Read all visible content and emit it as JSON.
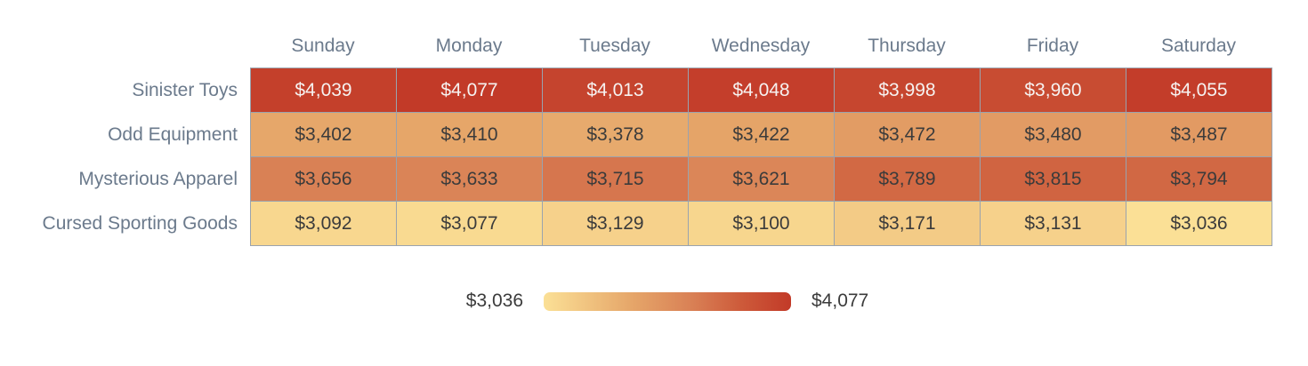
{
  "chart_data": {
    "type": "heatmap",
    "title": "",
    "columns": [
      "Sunday",
      "Monday",
      "Tuesday",
      "Wednesday",
      "Thursday",
      "Friday",
      "Saturday"
    ],
    "rows": [
      "Sinister Toys",
      "Odd Equipment",
      "Mysterious Apparel",
      "Cursed Sporting Goods"
    ],
    "values": [
      [
        4039,
        4077,
        4013,
        4048,
        3998,
        3960,
        4055
      ],
      [
        3402,
        3410,
        3378,
        3422,
        3472,
        3480,
        3487
      ],
      [
        3656,
        3633,
        3715,
        3621,
        3789,
        3815,
        3794
      ],
      [
        3092,
        3077,
        3129,
        3100,
        3171,
        3131,
        3036
      ]
    ],
    "cell_labels": [
      [
        "$4,039",
        "$4,077",
        "$4,013",
        "$4,048",
        "$3,998",
        "$3,960",
        "$4,055"
      ],
      [
        "$3,402",
        "$3,410",
        "$3,378",
        "$3,422",
        "$3,472",
        "$3,480",
        "$3,487"
      ],
      [
        "$3,656",
        "$3,633",
        "$3,715",
        "$3,621",
        "$3,789",
        "$3,815",
        "$3,794"
      ],
      [
        "$3,092",
        "$3,077",
        "$3,129",
        "$3,100",
        "$3,171",
        "$3,131",
        "$3,036"
      ]
    ],
    "value_min": 3036,
    "value_max": 4077,
    "legend": {
      "min_label": "$3,036",
      "max_label": "$4,077"
    },
    "grid": false,
    "colors": {
      "scale_stops": [
        {
          "pos": 0.0,
          "hex": "#fbe096"
        },
        {
          "pos": 0.35,
          "hex": "#e6a76a"
        },
        {
          "pos": 0.6,
          "hex": "#d98055"
        },
        {
          "pos": 0.8,
          "hex": "#cd5a3a"
        },
        {
          "pos": 1.0,
          "hex": "#c23a28"
        }
      ],
      "cell_border": "#9aa3ae",
      "header_text": "#6b7a8c",
      "row_label_text": "#6b7a8c",
      "cell_text_dark": "#3b3b3b",
      "cell_text_light": "#f6f2f0",
      "light_text_threshold": 0.8,
      "legend_text": "#3b3b3b"
    }
  }
}
